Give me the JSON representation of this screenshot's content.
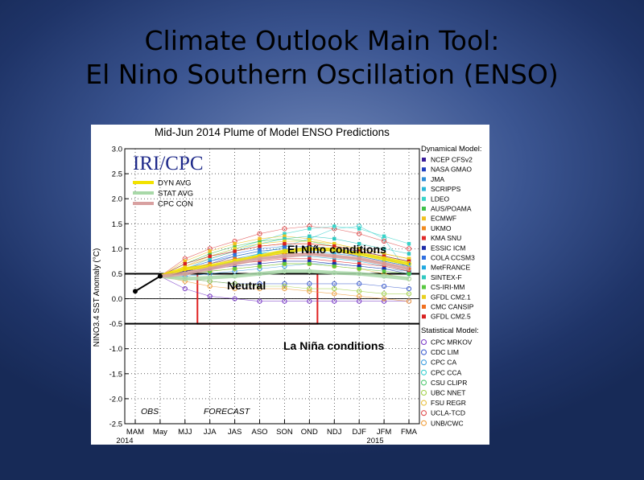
{
  "slide": {
    "title_line1": "Climate Outlook Main Tool:",
    "title_line2": "El Nino Southern Oscillation (ENSO)"
  },
  "chart_data": {
    "type": "line",
    "title": "Mid-Jun 2014 Plume of Model ENSO Predictions",
    "ylabel": "NINO3.4 SST Anomaly (°C)",
    "ylim": [
      -2.5,
      3.0
    ],
    "yticks": [
      "3.0",
      "2.5",
      "2.0",
      "1.5",
      "1.0",
      "0.5",
      "0.0",
      "-0.5",
      "-1.0",
      "-1.5",
      "-2.0",
      "-2.5"
    ],
    "categories": [
      "MAM",
      "May",
      "MJJ",
      "JJA",
      "JAS",
      "ASO",
      "SON",
      "OND",
      "NDJ",
      "DJF",
      "JFM",
      "FMA"
    ],
    "year_labels": {
      "start": "2014",
      "end": "2015"
    },
    "logo": "IRI/CPC",
    "section_labels": {
      "obs": "OBS",
      "forecast": "FORECAST"
    },
    "observed": {
      "x": [
        "MAM",
        "May"
      ],
      "values": [
        0.15,
        0.45
      ]
    },
    "thresholds": [
      0.5,
      -0.5
    ],
    "annotations": {
      "el_nino": "El Niño conditions",
      "neutral": "Neutral",
      "la_nina": "La Niña conditions"
    },
    "averages": [
      {
        "name": "DYN AVG",
        "color": "#f2e200",
        "values": [
          0.45,
          0.6,
          0.65,
          0.75,
          0.85,
          0.95,
          1.0,
          0.98,
          0.9,
          0.8,
          0.7
        ]
      },
      {
        "name": "STAT AVG",
        "color": "#a8d8a8",
        "values": [
          0.45,
          0.4,
          0.42,
          0.45,
          0.5,
          0.55,
          0.55,
          0.52,
          0.5,
          0.45,
          0.4
        ]
      },
      {
        "name": "CPC CON",
        "color": "#d8a0a0",
        "values": [
          0.45,
          0.5,
          0.6,
          0.7,
          0.8,
          0.85,
          0.9,
          0.85,
          0.8,
          0.7,
          0.6
        ]
      }
    ],
    "legend_dynamical_title": "Dynamical Model:",
    "legend_statistical_title": "Statistical Model:",
    "dynamical_models": [
      {
        "name": "NCEP CFSv2",
        "color": "#3a1d9a",
        "values": [
          0.45,
          0.55,
          0.7,
          0.85,
          0.95,
          1.0,
          1.0,
          0.95,
          0.85,
          0.75,
          0.65
        ]
      },
      {
        "name": "NASA GMAO",
        "color": "#1f3fc0",
        "values": [
          0.45,
          0.5,
          0.6,
          0.7,
          0.85,
          0.95,
          1.05,
          1.0,
          0.9,
          0.8,
          0.65
        ]
      },
      {
        "name": "JMA",
        "color": "#2f8fd8",
        "values": [
          0.45,
          0.6,
          0.75,
          0.85,
          0.95,
          1.0,
          1.0,
          0.95,
          0.9,
          0.8,
          0.7
        ]
      },
      {
        "name": "SCRIPPS",
        "color": "#29b6d8",
        "values": [
          0.45,
          0.55,
          0.65,
          0.75,
          0.8,
          0.85,
          0.85,
          0.8,
          0.75,
          0.65,
          0.55
        ]
      },
      {
        "name": "LDEO",
        "color": "#39d3c8",
        "values": [
          0.45,
          0.7,
          0.85,
          1.0,
          1.15,
          1.3,
          1.4,
          1.45,
          1.4,
          1.25,
          1.1
        ]
      },
      {
        "name": "AUS/POAMA",
        "color": "#3fc04a",
        "values": [
          0.45,
          0.7,
          0.9,
          1.05,
          1.15,
          1.2,
          1.15,
          1.05,
          0.95,
          0.85,
          0.75
        ]
      },
      {
        "name": "ECMWF",
        "color": "#f0c020",
        "values": [
          0.45,
          0.75,
          0.95,
          1.1,
          1.2,
          1.25,
          1.2,
          1.1,
          1.0,
          0.9,
          0.8
        ]
      },
      {
        "name": "UKMO",
        "color": "#f08a20",
        "values": [
          0.45,
          0.65,
          0.8,
          0.95,
          1.05,
          1.1,
          1.1,
          1.05,
          1.0,
          0.9,
          0.8
        ]
      },
      {
        "name": "KMA SNU",
        "color": "#e02a2a",
        "values": [
          0.45,
          0.55,
          0.65,
          0.7,
          0.75,
          0.8,
          0.8,
          0.75,
          0.7,
          0.65,
          0.55
        ]
      },
      {
        "name": "ESSIC ICM",
        "color": "#1c2ca8",
        "values": [
          0.45,
          0.55,
          0.6,
          0.65,
          0.7,
          0.75,
          0.75,
          0.7,
          0.65,
          0.6,
          0.5
        ]
      },
      {
        "name": "COLA CCSM3",
        "color": "#3070e0",
        "values": [
          0.45,
          0.6,
          0.75,
          0.9,
          1.0,
          1.05,
          1.05,
          1.0,
          0.95,
          0.85,
          0.75
        ]
      },
      {
        "name": "MetFRANCE",
        "color": "#20a8e0",
        "values": [
          0.45,
          0.6,
          0.7,
          0.8,
          0.9,
          0.95,
          0.95,
          0.9,
          0.85,
          0.75,
          0.65
        ]
      },
      {
        "name": "SINTEX-F",
        "color": "#30c8c0",
        "values": [
          0.45,
          0.6,
          0.8,
          0.95,
          1.1,
          1.2,
          1.25,
          1.2,
          1.1,
          1.0,
          0.9
        ]
      },
      {
        "name": "CS-IRI-MM",
        "color": "#58c840",
        "values": [
          0.45,
          0.5,
          0.55,
          0.6,
          0.65,
          0.7,
          0.7,
          0.65,
          0.6,
          0.55,
          0.5
        ]
      },
      {
        "name": "GFDL CM2.1",
        "color": "#e8d020",
        "values": [
          0.45,
          0.65,
          0.85,
          1.0,
          1.1,
          1.15,
          1.15,
          1.1,
          1.0,
          0.9,
          0.8
        ]
      },
      {
        "name": "CMC CANSIP",
        "color": "#f07020",
        "values": [
          0.45,
          0.6,
          0.7,
          0.8,
          0.85,
          0.9,
          0.9,
          0.85,
          0.8,
          0.7,
          0.6
        ]
      },
      {
        "name": "GFDL CM2.5",
        "color": "#d82020",
        "values": [
          0.45,
          0.7,
          0.85,
          0.95,
          1.05,
          1.1,
          1.1,
          1.05,
          0.95,
          0.85,
          0.75
        ]
      }
    ],
    "statistical_models": [
      {
        "name": "CPC MRKOV",
        "color": "#7a3ac8",
        "values": [
          0.45,
          0.2,
          0.05,
          0.0,
          -0.05,
          -0.05,
          -0.05,
          -0.05,
          -0.05,
          -0.05,
          -0.05
        ]
      },
      {
        "name": "CDC LIM",
        "color": "#4060d0",
        "values": [
          0.45,
          0.4,
          0.35,
          0.3,
          0.3,
          0.3,
          0.3,
          0.3,
          0.3,
          0.25,
          0.2
        ]
      },
      {
        "name": "CPC CA",
        "color": "#40a0e0",
        "values": [
          0.45,
          0.45,
          0.5,
          0.55,
          0.6,
          0.65,
          0.7,
          0.7,
          0.65,
          0.6,
          0.55
        ]
      },
      {
        "name": "CPC CCA",
        "color": "#38d0d0",
        "values": [
          0.45,
          0.5,
          0.6,
          0.75,
          0.9,
          1.05,
          1.2,
          1.4,
          1.45,
          1.2,
          0.5
        ]
      },
      {
        "name": "CSU CLIPR",
        "color": "#50c870",
        "values": [
          0.45,
          0.55,
          0.65,
          0.75,
          0.85,
          0.9,
          0.9,
          0.85,
          0.8,
          0.7,
          0.6
        ]
      },
      {
        "name": "UBC NNET",
        "color": "#a0d048",
        "values": [
          0.45,
          0.4,
          0.35,
          0.3,
          0.25,
          0.25,
          0.2,
          0.2,
          0.15,
          0.1,
          0.1
        ]
      },
      {
        "name": "FSU REGR",
        "color": "#e8c040",
        "values": [
          0.45,
          0.5,
          0.55,
          0.6,
          0.65,
          0.7,
          0.7,
          0.65,
          0.6,
          0.5,
          0.4
        ]
      },
      {
        "name": "UCLA-TCD",
        "color": "#e05050",
        "values": [
          0.45,
          0.8,
          1.0,
          1.15,
          1.3,
          1.4,
          1.45,
          1.4,
          1.3,
          1.15,
          1.0
        ]
      },
      {
        "name": "UNB/CWC",
        "color": "#f0a040",
        "values": [
          0.45,
          0.35,
          0.25,
          0.2,
          0.2,
          0.2,
          0.15,
          0.1,
          0.05,
          0.0,
          -0.05
        ]
      }
    ]
  }
}
